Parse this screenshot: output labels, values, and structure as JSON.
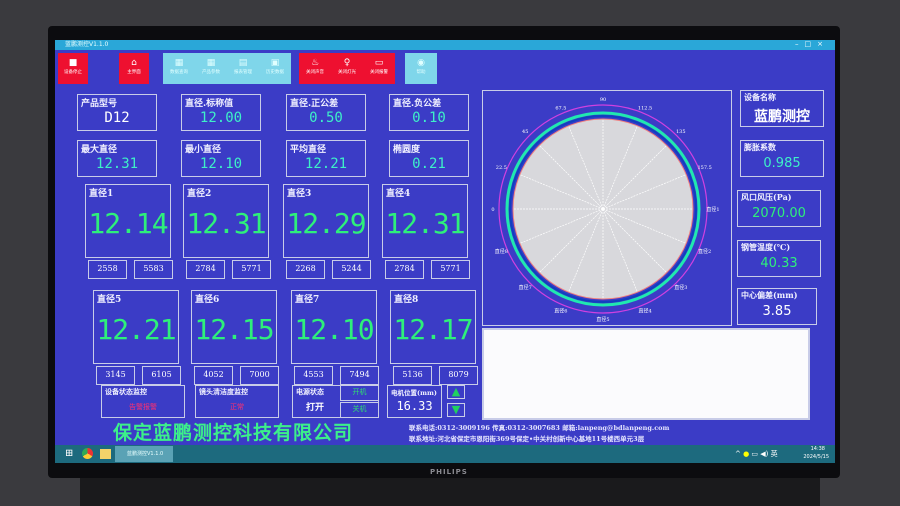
{
  "window": {
    "title": "蓝鹏测控V1.1.0",
    "controls": "–□×"
  },
  "toolbar": [
    {
      "label": "设备停止",
      "icon": "stop-icon",
      "color": "#ee1030"
    },
    {
      "label": "主界面",
      "icon": "home-icon",
      "color": "#ee1030"
    },
    {
      "label": "数据查询",
      "icon": "grid-icon",
      "color": "#7fd6ea"
    },
    {
      "label": "产品参数",
      "icon": "grid-icon",
      "color": "#7fd6ea"
    },
    {
      "label": "报表管理",
      "icon": "chart-icon",
      "color": "#7fd6ea"
    },
    {
      "label": "历史数据",
      "icon": "image-icon",
      "color": "#7fd6ea"
    },
    {
      "label": "关闭声音",
      "icon": "alarm-icon",
      "color": "#ee1030"
    },
    {
      "label": "关闭灯光",
      "icon": "bulb-icon",
      "color": "#ee1030"
    },
    {
      "label": "关闭报警",
      "icon": "monitor-icon",
      "color": "#ee1030"
    },
    {
      "label": "帮助",
      "icon": "help-icon",
      "color": "#7fd6ea"
    }
  ],
  "params": [
    {
      "label": "产品型号",
      "value": "D12"
    },
    {
      "label": "直径.标称值",
      "value": "12.00"
    },
    {
      "label": "直径.正公差",
      "value": "0.50"
    },
    {
      "label": "直径.负公差",
      "value": "0.10"
    },
    {
      "label": "最大直径",
      "value": "12.31"
    },
    {
      "label": "最小直径",
      "value": "12.10"
    },
    {
      "label": "平均直径",
      "value": "12.21"
    },
    {
      "label": "椭圆度",
      "value": "0.21"
    }
  ],
  "diameters": [
    {
      "label": "直径1",
      "value": "12.14",
      "a": "2558",
      "b": "5583"
    },
    {
      "label": "直径2",
      "value": "12.31",
      "a": "2784",
      "b": "5771"
    },
    {
      "label": "直径3",
      "value": "12.29",
      "a": "2268",
      "b": "5244"
    },
    {
      "label": "直径4",
      "value": "12.31",
      "a": "2784",
      "b": "5771"
    },
    {
      "label": "直径5",
      "value": "12.21",
      "a": "3145",
      "b": "6105"
    },
    {
      "label": "直径6",
      "value": "12.15",
      "a": "4052",
      "b": "7000"
    },
    {
      "label": "直径7",
      "value": "12.10",
      "a": "4553",
      "b": "7494"
    },
    {
      "label": "直径8",
      "value": "12.17",
      "a": "5136",
      "b": "8079"
    }
  ],
  "right": [
    {
      "label": "设备名称",
      "value": "蓝鹏测控"
    },
    {
      "label": "膨胀系数",
      "value": "0.985"
    },
    {
      "label": "风口风压(Pa)",
      "value": "2070.00"
    },
    {
      "label": "钢管温度(℃)",
      "value": "40.33"
    },
    {
      "label": "中心偏差(mm)",
      "value": "3.85"
    }
  ],
  "status": {
    "device_label": "设备状态监控",
    "device_value": "告警报警",
    "lens_label": "镜头清洁度监控",
    "lens_value": "正常",
    "power_label": "电源状态",
    "power_value": "打开",
    "on": "开机",
    "off": "关机",
    "motor_label": "电机位置(mm)",
    "motor_value": "16.33"
  },
  "polar": {
    "labels": [
      "0",
      "22.5",
      "45",
      "67.5",
      "90",
      "112.5",
      "135",
      "157.5",
      "直径1",
      "直径2",
      "直径3",
      "直径4",
      "直径5",
      "直径6",
      "直径7",
      "直径8"
    ],
    "colors": {
      "outer": "#d040e0",
      "measured": "#20e8b0",
      "inner": "#1040c0",
      "fill": "#d8d8dc"
    }
  },
  "company": "保定蓝鹏测控科技有限公司",
  "contact": {
    "line1": "联系电话:0312-3009196 传真:0312-3007683 邮箱:lanpeng@bdlanpeng.com",
    "line2": "联系地址:河北省保定市恩阳街369号保定•中关村创新中心基地11号楼西单元3层"
  },
  "taskbar": {
    "app": "蓝鹏测控V1.1.0",
    "time": "14:38",
    "date": "2024/5/15",
    "ime": "英"
  },
  "monitor_brand": "PHILIPS"
}
